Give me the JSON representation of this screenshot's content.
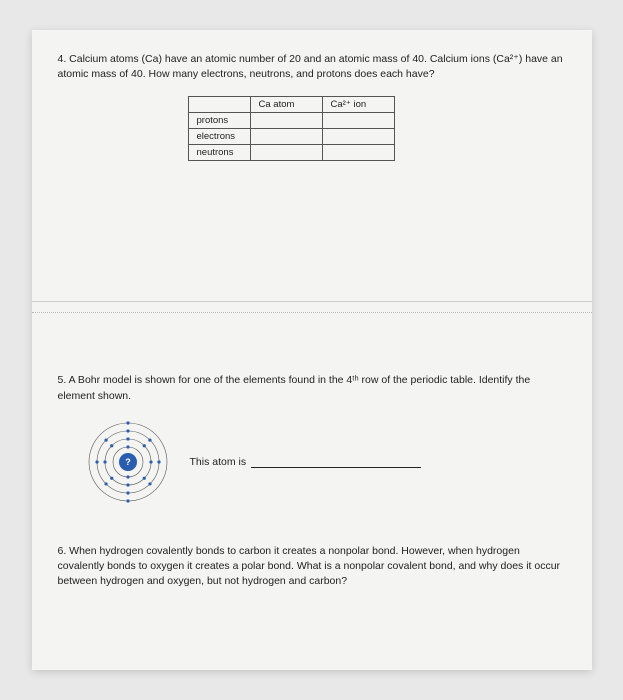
{
  "q4": {
    "text_html": "4. Calcium atoms (Ca) have an atomic number of 20 and an atomic mass of 40. Calcium ions (Ca²⁺) have an atomic mass of 40. How many electrons, neutrons, and protons does each have?",
    "table": {
      "col_headers": [
        "Ca atom",
        "Ca²⁺ ion"
      ],
      "row_headers": [
        "protons",
        "electrons",
        "neutrons"
      ],
      "cells": [
        [
          "",
          ""
        ],
        [
          "",
          ""
        ],
        [
          "",
          ""
        ]
      ]
    }
  },
  "q5": {
    "text_html": "5. A Bohr model is shown for one of the elements found in the 4ᵗʰ row of the periodic table. Identify the element shown.",
    "answer_label": "This atom is",
    "diagram": {
      "type": "bohr-model",
      "nucleus_label": "?",
      "nucleus_color": "#2a5db0",
      "nucleus_text_color": "#ffffff",
      "nucleus_radius": 9,
      "ring_color": "#555555",
      "ring_stroke": 0.6,
      "electron_color": "#2a5db0",
      "electron_radius": 1.6,
      "background": "transparent",
      "shells": [
        {
          "radius": 15,
          "electrons": 2
        },
        {
          "radius": 23,
          "electrons": 8
        },
        {
          "radius": 31,
          "electrons": 8
        },
        {
          "radius": 39,
          "electrons": 2
        }
      ]
    }
  },
  "q6": {
    "text_html": "6. When hydrogen covalently bonds to carbon it creates a nonpolar bond. However, when hydrogen covalently bonds to oxygen it creates a polar bond. What is a nonpolar covalent bond, and why does it occur between hydrogen and oxygen, but not hydrogen and carbon?"
  },
  "colors": {
    "page_bg": "#f4f4f2",
    "outer_bg": "#e8e8e8",
    "text": "#222222",
    "table_border": "#555555",
    "divider": "#cccccc"
  }
}
